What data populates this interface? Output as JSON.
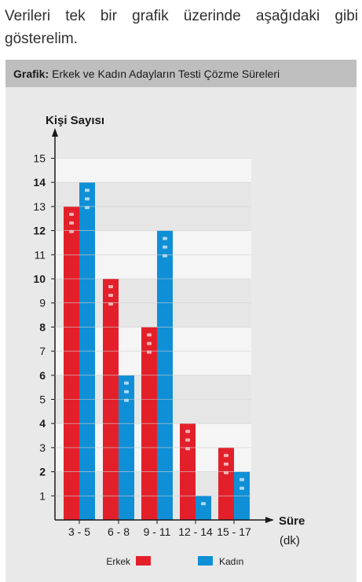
{
  "intro_text": "Verileri tek bir grafik üzerinde aşağıdaki gibi gösterelim.",
  "header": {
    "label": "Grafik:",
    "title": "Erkek ve Kadın Adayların Testi Çözme Süreleri"
  },
  "colors": {
    "erkek": "#e3202a",
    "kadin": "#0f8fd6",
    "band_light": "#e6e6e6",
    "band_dark": "#f5f5f5"
  },
  "chart_data": {
    "type": "bar",
    "categories": [
      "3 - 5",
      "6 - 8",
      "9 - 11",
      "12 - 14",
      "15 - 17"
    ],
    "series": [
      {
        "name": "Erkek",
        "values": [
          13,
          10,
          8,
          4,
          3
        ]
      },
      {
        "name": "Kadın",
        "values": [
          14,
          6,
          12,
          1,
          2
        ]
      }
    ],
    "ylabel": "Kişi Sayısı",
    "xlabel": "Süre",
    "xunit": "(dk)",
    "ylim": [
      0,
      15
    ],
    "yticks": [
      "1",
      "2",
      "3",
      "4",
      "5",
      "6",
      "7",
      "8",
      "9",
      "10",
      "11",
      "12",
      "13",
      "14",
      "15"
    ],
    "grid": true,
    "legend": "bottom"
  }
}
